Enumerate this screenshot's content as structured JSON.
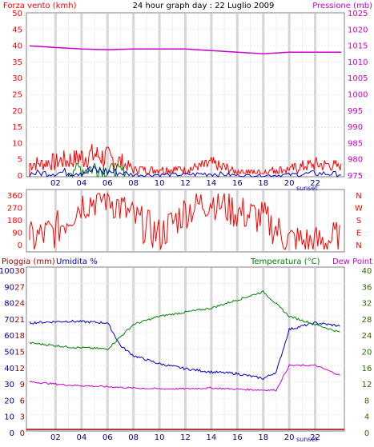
{
  "colors": {
    "red": "#ff0000",
    "magenta": "#cc00cc",
    "green": "#008000",
    "blue": "#0000cc",
    "navy": "#000099",
    "dark_red": "#990000",
    "olive": "#336600",
    "frame": "#808080",
    "grid": "#e4e4e4"
  },
  "top": {
    "title": "24 hour graph day : 22 Luglio 2009",
    "left_label": "Forza vento (kmh)",
    "right_label": "Pressione (mb)",
    "y_left_ticks": [
      "50",
      "45",
      "40",
      "35",
      "30",
      "25",
      "20",
      "15",
      "10",
      "5",
      "0"
    ],
    "y_right_ticks": [
      "1025",
      "1020",
      "1015",
      "1010",
      "1005",
      "1000",
      "995",
      "990",
      "985",
      "980",
      "975"
    ]
  },
  "middle": {
    "y_left_ticks": [
      "360",
      "270",
      "180",
      "90",
      "0"
    ],
    "compass": [
      "N",
      "W",
      "S",
      "E",
      "N"
    ]
  },
  "bottom": {
    "label_rain": "Pioggia (mm)",
    "label_humidity": "Umidita %",
    "label_temp": "Temperatura (°C)",
    "label_dew": "Dew Point",
    "y_humidity_ticks": [
      "100",
      "90",
      "80",
      "70",
      "60",
      "50",
      "40",
      "30",
      "20",
      "10",
      "0"
    ],
    "y_rain_ticks": [
      "30",
      "27",
      "24",
      "21",
      "18",
      "15",
      "12",
      "9",
      "6",
      "3",
      "0"
    ],
    "y_temp_ticks": [
      "40",
      "36",
      "32",
      "28",
      "24",
      "20",
      "16",
      "12",
      "8",
      "4",
      "0"
    ]
  },
  "x_ticks": [
    "02",
    "04",
    "06",
    "08",
    "10",
    "12",
    "14",
    "16",
    "18",
    "20",
    "22"
  ],
  "sunset_label": "sunset",
  "chart_data": [
    {
      "type": "line",
      "title": "24 hour graph day : 22 Luglio 2009",
      "series": [
        {
          "name": "Forza vento (kmh)",
          "axis": "left",
          "x": [
            0,
            2,
            4,
            5,
            6,
            7,
            8,
            10,
            12,
            14,
            16,
            18,
            20,
            22,
            24
          ],
          "values": [
            5,
            6,
            8,
            9,
            8,
            6,
            3,
            3,
            3,
            5,
            2,
            2,
            3,
            5,
            4
          ]
        },
        {
          "name": "Pressione (mb)",
          "axis": "right",
          "x": [
            0,
            2,
            4,
            6,
            8,
            10,
            12,
            14,
            16,
            18,
            20,
            22,
            24
          ],
          "values": [
            1016.5,
            1016,
            1015.5,
            1015.3,
            1015.5,
            1015.5,
            1015.5,
            1015,
            1014.5,
            1014,
            1014.5,
            1014.5,
            1014.5
          ]
        }
      ],
      "ylim_left": [
        0,
        50
      ],
      "ylim_right": [
        975,
        1027
      ]
    },
    {
      "type": "scatter",
      "series": [
        {
          "name": "",
          "x": [
            0,
            2,
            4,
            6,
            8,
            10,
            12,
            14,
            16,
            18,
            20,
            22,
            24
          ],
          "values": [
            60,
            120,
            300,
            340,
            200,
            90,
            250,
            320,
            240,
            200,
            60,
            40,
            80
          ]
        }
      ],
      "ylim": [
        0,
        360
      ]
    },
    {
      "type": "line",
      "series": [
        {
          "name": "Umidita %",
          "x": [
            0,
            3,
            6,
            7,
            8,
            10,
            12,
            14,
            16,
            18,
            19,
            20,
            22,
            24
          ],
          "values": [
            66,
            67,
            66,
            52,
            46,
            41,
            38,
            36,
            35,
            32,
            36,
            62,
            66,
            64
          ]
        },
        {
          "name": "Temperatura (°C)",
          "x": [
            0,
            3,
            6,
            7,
            8,
            10,
            12,
            14,
            16,
            18,
            20,
            22,
            24
          ],
          "values": [
            21.5,
            20.5,
            20,
            23,
            26,
            28,
            29,
            30,
            32,
            34,
            28,
            26,
            24
          ]
        },
        {
          "name": "Dew Point",
          "x": [
            0,
            3,
            6,
            8,
            10,
            12,
            14,
            16,
            18,
            19,
            20,
            22,
            24
          ],
          "values": [
            12,
            11.2,
            10.8,
            10.5,
            10.3,
            10.3,
            10.5,
            10.2,
            10,
            10,
            16,
            16,
            13.5
          ]
        }
      ],
      "ylim_humidity": [
        0,
        100
      ],
      "ylim_temp": [
        0,
        40
      ]
    }
  ]
}
